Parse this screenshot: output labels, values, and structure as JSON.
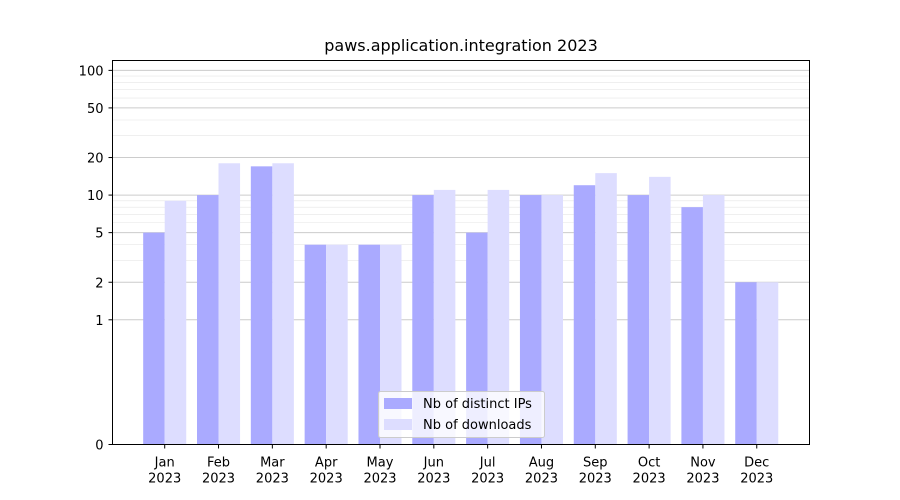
{
  "chart_data": {
    "type": "bar",
    "title": "paws.application.integration 2023",
    "xlabel": "",
    "ylabel": "",
    "yscale": "symlog",
    "ylim": [
      0,
      120
    ],
    "yticks": [
      0,
      1,
      2,
      5,
      10,
      20,
      50,
      100
    ],
    "grid": "horizontal",
    "legend_position": "lower center",
    "categories": [
      [
        "Jan",
        "2023"
      ],
      [
        "Feb",
        "2023"
      ],
      [
        "Mar",
        "2023"
      ],
      [
        "Apr",
        "2023"
      ],
      [
        "May",
        "2023"
      ],
      [
        "Jun",
        "2023"
      ],
      [
        "Jul",
        "2023"
      ],
      [
        "Aug",
        "2023"
      ],
      [
        "Sep",
        "2023"
      ],
      [
        "Oct",
        "2023"
      ],
      [
        "Nov",
        "2023"
      ],
      [
        "Dec",
        "2023"
      ]
    ],
    "series": [
      {
        "name": "Nb of distinct IPs",
        "color": "#aaaaff",
        "values": [
          5,
          10,
          17,
          4,
          4,
          10,
          5,
          10,
          12,
          10,
          8,
          2
        ]
      },
      {
        "name": "Nb of downloads",
        "color": "#ddddff",
        "values": [
          9,
          18,
          18,
          4,
          4,
          11,
          11,
          10,
          15,
          14,
          10,
          2
        ]
      }
    ]
  }
}
